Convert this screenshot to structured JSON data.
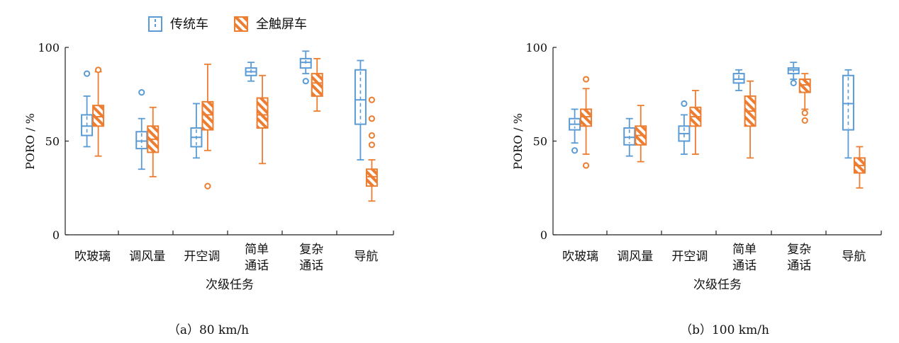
{
  "legend": [
    {
      "label": "传统车",
      "color": "#5b9bd5",
      "pattern": "dashed"
    },
    {
      "label": "全触屏车",
      "color": "#ed7d31",
      "pattern": "hatched"
    }
  ],
  "chart_data": [
    {
      "type": "box",
      "caption": "（a）80 km/h",
      "xlabel": "次级任务",
      "ylabel": "PORO / %",
      "ylim": [
        0,
        100
      ],
      "yticks": [
        0,
        50,
        100
      ],
      "categories": [
        {
          "line1": "吹玻璃",
          "line2": ""
        },
        {
          "line1": "调风量",
          "line2": ""
        },
        {
          "line1": "开空调",
          "line2": ""
        },
        {
          "line1": "简单",
          "line2": "通话"
        },
        {
          "line1": "复杂",
          "line2": "通话"
        },
        {
          "line1": "导航",
          "line2": ""
        }
      ],
      "series": [
        {
          "name": "传统车",
          "boxes": [
            {
              "min": 47,
              "q1": 53,
              "median": 58,
              "q3": 64,
              "max": 74,
              "outliers": [
                86
              ]
            },
            {
              "min": 35,
              "q1": 46,
              "median": 50,
              "q3": 55,
              "max": 62,
              "outliers": [
                76
              ]
            },
            {
              "min": 41,
              "q1": 47,
              "median": 52,
              "q3": 57,
              "max": 70,
              "outliers": []
            },
            {
              "min": 82,
              "q1": 85,
              "median": 87,
              "q3": 89,
              "max": 92,
              "outliers": []
            },
            {
              "min": 86,
              "q1": 89,
              "median": 92,
              "q3": 94,
              "max": 98,
              "outliers": [
                82
              ]
            },
            {
              "min": 40,
              "q1": 59,
              "median": 72,
              "q3": 88,
              "max": 93,
              "outliers": []
            }
          ]
        },
        {
          "name": "全触屏车",
          "boxes": [
            {
              "min": 42,
              "q1": 58,
              "median": 63,
              "q3": 69,
              "max": 87,
              "outliers": [
                88
              ]
            },
            {
              "min": 31,
              "q1": 44,
              "median": 51,
              "q3": 58,
              "max": 68,
              "outliers": []
            },
            {
              "min": 45,
              "q1": 56,
              "median": 64,
              "q3": 71,
              "max": 91,
              "outliers": [
                26
              ]
            },
            {
              "min": 38,
              "q1": 57,
              "median": 64,
              "q3": 73,
              "max": 85,
              "outliers": []
            },
            {
              "min": 66,
              "q1": 74,
              "median": 81,
              "q3": 86,
              "max": 94,
              "outliers": []
            },
            {
              "min": 18,
              "q1": 26,
              "median": 31,
              "q3": 35,
              "max": 40,
              "outliers": [
                48,
                53,
                62,
                72
              ]
            }
          ]
        }
      ]
    },
    {
      "type": "box",
      "caption": "（b）100 km/h",
      "xlabel": "次级任务",
      "ylabel": "PORO / %",
      "ylim": [
        0,
        100
      ],
      "yticks": [
        0,
        50,
        100
      ],
      "categories": [
        {
          "line1": "吹玻璃",
          "line2": ""
        },
        {
          "line1": "调风量",
          "line2": ""
        },
        {
          "line1": "开空调",
          "line2": ""
        },
        {
          "line1": "简单",
          "line2": "通话"
        },
        {
          "line1": "复杂",
          "line2": "通话"
        },
        {
          "line1": "导航",
          "line2": ""
        }
      ],
      "series": [
        {
          "name": "传统车",
          "boxes": [
            {
              "min": 49,
              "q1": 56,
              "median": 59,
              "q3": 62,
              "max": 67,
              "outliers": [
                45
              ]
            },
            {
              "min": 42,
              "q1": 48,
              "median": 52,
              "q3": 57,
              "max": 62,
              "outliers": []
            },
            {
              "min": 43,
              "q1": 50,
              "median": 54,
              "q3": 58,
              "max": 64,
              "outliers": [
                70
              ]
            },
            {
              "min": 77,
              "q1": 81,
              "median": 83,
              "q3": 86,
              "max": 88,
              "outliers": []
            },
            {
              "min": 83,
              "q1": 86,
              "median": 88,
              "q3": 89,
              "max": 92,
              "outliers": [
                81
              ]
            },
            {
              "min": 41,
              "q1": 56,
              "median": 70,
              "q3": 85,
              "max": 88,
              "outliers": []
            }
          ]
        },
        {
          "name": "全触屏车",
          "boxes": [
            {
              "min": 43,
              "q1": 58,
              "median": 63,
              "q3": 67,
              "max": 78,
              "outliers": [
                37,
                83
              ]
            },
            {
              "min": 39,
              "q1": 48,
              "median": 53,
              "q3": 58,
              "max": 69,
              "outliers": []
            },
            {
              "min": 43,
              "q1": 58,
              "median": 63,
              "q3": 68,
              "max": 77,
              "outliers": []
            },
            {
              "min": 41,
              "q1": 58,
              "median": 66,
              "q3": 74,
              "max": 82,
              "outliers": []
            },
            {
              "min": 67,
              "q1": 76,
              "median": 80,
              "q3": 83,
              "max": 86,
              "outliers": [
                61,
                65
              ]
            },
            {
              "min": 25,
              "q1": 33,
              "median": 37,
              "q3": 41,
              "max": 47,
              "outliers": []
            }
          ]
        }
      ]
    }
  ]
}
